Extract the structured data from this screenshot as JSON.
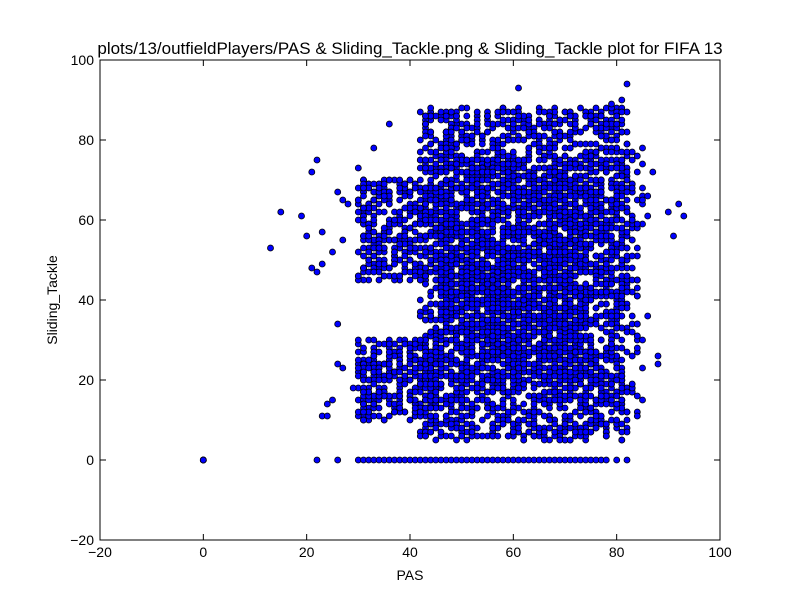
{
  "chart_data": {
    "type": "scatter",
    "title": "plots/13/outfieldPlayers/PAS & Sliding_Tackle.png & Sliding_Tackle plot for FIFA 13",
    "xlabel": "PAS",
    "ylabel": "Sliding_Tackle",
    "xlim": [
      -20,
      100
    ],
    "ylim": [
      -20,
      100
    ],
    "xticks": [
      -20,
      0,
      20,
      40,
      60,
      80,
      100
    ],
    "yticks": [
      -20,
      0,
      20,
      40,
      60,
      80,
      100
    ],
    "grid": false,
    "legend": "none",
    "marker_color": "#0000ff",
    "marker_edge_color": "#000000",
    "series": [
      {
        "clusters": [
          {
            "x": [
              42,
              82
            ],
            "y": [
              5,
              88
            ],
            "density": 2600
          },
          {
            "x": [
              46,
              74
            ],
            "y": [
              20,
              75
            ],
            "density": 1400
          },
          {
            "x": [
              30,
              46
            ],
            "y": [
              10,
              30
            ],
            "density": 320
          },
          {
            "x": [
              30,
              46
            ],
            "y": [
              45,
              70
            ],
            "density": 380
          },
          {
            "x": [
              74,
              85
            ],
            "y": [
              12,
              78
            ],
            "density": 260
          }
        ],
        "x": [
          0,
          0,
          0,
          0,
          13,
          15,
          19,
          20,
          21,
          21,
          22,
          22,
          23,
          23,
          23,
          24,
          24,
          25,
          25,
          26,
          26,
          26,
          27,
          27,
          27,
          28,
          29,
          30,
          33,
          36,
          38,
          44,
          61,
          64,
          68,
          79,
          80,
          81,
          82,
          84,
          85,
          86,
          86,
          86,
          87,
          88,
          88,
          90,
          91,
          92,
          93,
          22,
          26,
          30,
          31,
          32,
          33,
          34,
          35,
          36,
          37,
          38,
          39,
          40,
          41,
          42,
          43,
          44,
          45,
          46,
          47,
          48,
          49,
          50,
          51,
          52,
          53,
          54,
          55,
          56,
          57,
          58,
          59,
          60,
          61,
          62,
          63,
          64,
          65,
          66,
          67,
          68,
          69,
          70,
          71,
          72,
          73,
          74,
          75,
          76,
          77,
          78,
          80,
          82
        ],
        "y": [
          0,
          0,
          0,
          0,
          53,
          62,
          61,
          56,
          48,
          72,
          47,
          75,
          11,
          57,
          49,
          11,
          14,
          15,
          52,
          34,
          24,
          67,
          23,
          55,
          65,
          64,
          18,
          73,
          78,
          84,
          22,
          7,
          93,
          6,
          7,
          89,
          86,
          90,
          94,
          11,
          78,
          36,
          61,
          66,
          72,
          24,
          26,
          62,
          56,
          64,
          61,
          0,
          0,
          0,
          0,
          0,
          0,
          0,
          0,
          0,
          0,
          0,
          0,
          0,
          0,
          0,
          0,
          0,
          0,
          0,
          0,
          0,
          0,
          0,
          0,
          0,
          0,
          0,
          0,
          0,
          0,
          0,
          0,
          0,
          0,
          0,
          0,
          0,
          0,
          0,
          0,
          0,
          0,
          0,
          0,
          0,
          0,
          0,
          0,
          0,
          0,
          0,
          0,
          0
        ]
      }
    ]
  }
}
